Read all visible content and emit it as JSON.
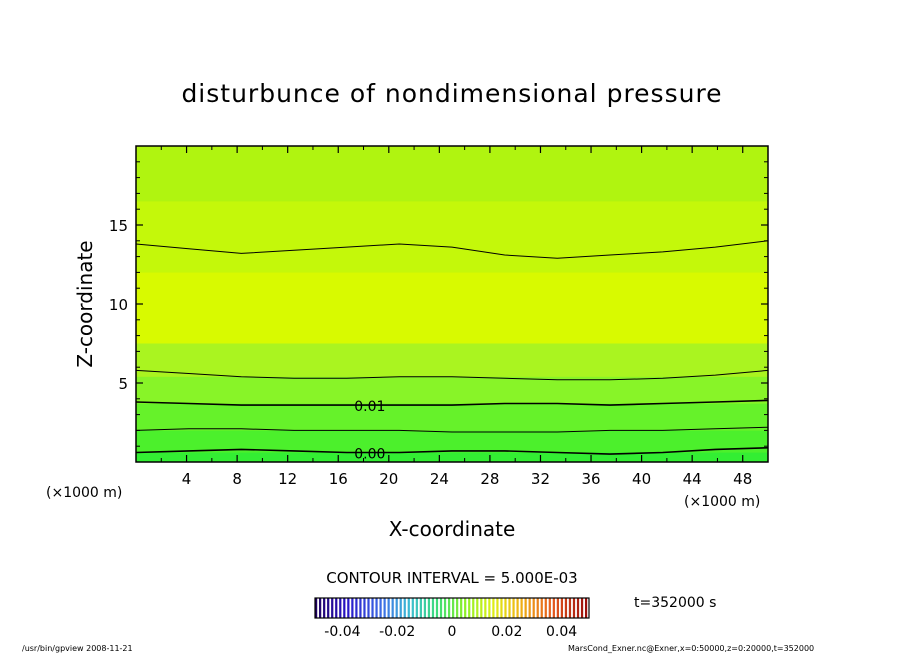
{
  "chart_data": {
    "type": "heatmap",
    "title": "disturbunce of nondimensional pressure",
    "xlabel": "X-coordinate",
    "ylabel": "Z-coordinate",
    "x_unit": "(×1000 m)",
    "z_unit": "(×1000 m)",
    "xlim": [
      0,
      50
    ],
    "zlim": [
      0,
      20
    ],
    "x_ticks": [
      "4",
      "8",
      "12",
      "16",
      "20",
      "24",
      "28",
      "32",
      "36",
      "40",
      "44",
      "48"
    ],
    "z_ticks": [
      "5",
      "10",
      "15"
    ],
    "contour_interval_label": "CONTOUR INTERVAL = 5.000E-03",
    "contour_labels": [
      "0.01",
      "0.00"
    ],
    "time_label": "t=352000 s",
    "colorbar": {
      "range": [
        -0.05,
        0.05
      ],
      "ticks": [
        "-0.04",
        "-0.02",
        "0",
        "0.02",
        "0.04"
      ]
    },
    "contours": [
      {
        "level": 0.0,
        "label": "0.00",
        "z": [
          0.6,
          0.7,
          0.8,
          0.7,
          0.6,
          0.6,
          0.7,
          0.7,
          0.6,
          0.5,
          0.6,
          0.8,
          0.9
        ]
      },
      {
        "level": 0.005,
        "z": [
          2.0,
          2.1,
          2.1,
          2.0,
          2.0,
          2.0,
          1.9,
          1.9,
          1.9,
          2.0,
          2.0,
          2.1,
          2.2
        ]
      },
      {
        "level": 0.01,
        "label": "0.01",
        "z": [
          3.8,
          3.7,
          3.6,
          3.6,
          3.6,
          3.6,
          3.6,
          3.7,
          3.7,
          3.6,
          3.7,
          3.8,
          3.9
        ]
      },
      {
        "level": 0.015,
        "z": [
          5.8,
          5.6,
          5.4,
          5.3,
          5.3,
          5.4,
          5.4,
          5.3,
          5.2,
          5.2,
          5.3,
          5.5,
          5.8
        ]
      },
      {
        "level": 0.015,
        "z": [
          13.8,
          13.5,
          13.2,
          13.4,
          13.6,
          13.8,
          13.6,
          13.1,
          12.9,
          13.1,
          13.3,
          13.6,
          14.0
        ]
      }
    ],
    "fill_bands": [
      {
        "z_bottom": 0.0,
        "z_top": 0.6,
        "color": "#33ee33"
      },
      {
        "z_bottom": 0.6,
        "z_top": 2.0,
        "color": "#4cf02c"
      },
      {
        "z_bottom": 2.0,
        "z_top": 3.7,
        "color": "#66f22a"
      },
      {
        "z_bottom": 3.7,
        "z_top": 5.4,
        "color": "#88f428"
      },
      {
        "z_bottom": 5.4,
        "z_top": 7.5,
        "color": "#aaf420"
      },
      {
        "z_bottom": 7.5,
        "z_top": 12.0,
        "color": "#d8fa00"
      },
      {
        "z_bottom": 12.0,
        "z_top": 16.5,
        "color": "#c4f80a"
      },
      {
        "z_bottom": 16.5,
        "z_top": 20.0,
        "color": "#b0f410"
      }
    ],
    "grid": false
  },
  "footer_left": "/usr/bin/gpview  2008-11-21",
  "footer_right": "MarsCond_Exner.nc@Exner,x=0:50000,z=0:20000,t=352000"
}
